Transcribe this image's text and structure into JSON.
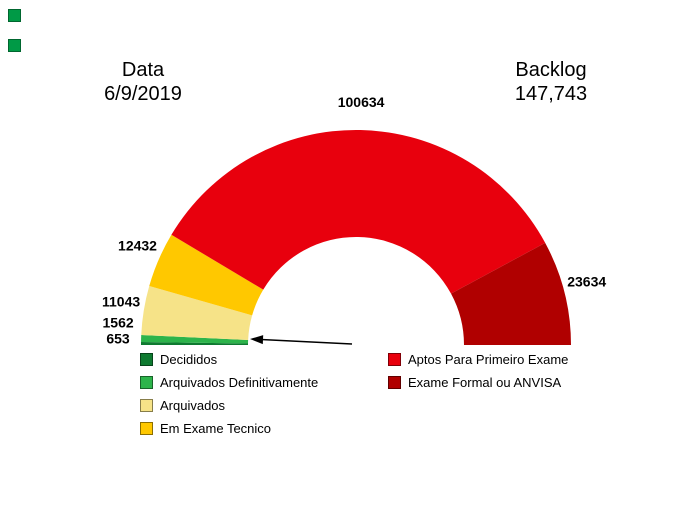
{
  "header": {
    "date_label": "Data",
    "date_value": "6/9/2019",
    "backlog_label": "Backlog",
    "backlog_value": "147,743"
  },
  "decor": {
    "square_color": "#009a46"
  },
  "chart_data": {
    "type": "pie",
    "variant": "half-donut",
    "start_angle_deg": 180,
    "end_angle_deg": 0,
    "segments": [
      {
        "label": "Decididos",
        "value": 653,
        "color": "#0e7a30"
      },
      {
        "label": "Arquivados Definitivamente",
        "value": 1562,
        "color": "#2db44b"
      },
      {
        "label": "Arquivados",
        "value": 11043,
        "color": "#f6e388"
      },
      {
        "label": "Em Exame Tecnico",
        "value": 12432,
        "color": "#ffc800"
      },
      {
        "label": "Aptos Para Primeiro Exame",
        "value": 100634,
        "color": "#e8000d"
      },
      {
        "label": "Exame Formal ou ANVISA",
        "value": 23634,
        "color": "#b00000"
      }
    ],
    "legend": {
      "position": "bottom",
      "left_column": [
        "Decididos",
        "Arquivados Definitivamente",
        "Arquivados",
        "Em Exame Tecnico"
      ],
      "right_column": [
        "Aptos Para Primeiro Exame",
        "Exame Formal ou ANVISA"
      ]
    },
    "annotations": [
      {
        "type": "arrow",
        "note": "arrow pointing left at the smallest segments near the chart base"
      }
    ]
  }
}
